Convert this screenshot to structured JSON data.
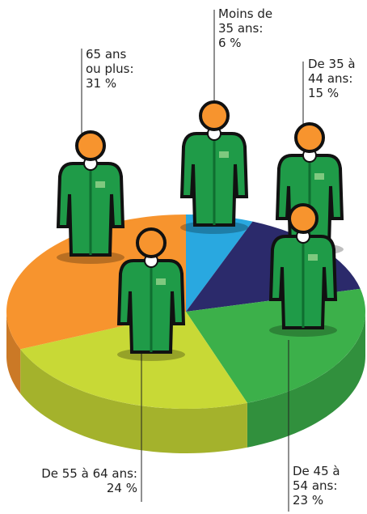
{
  "chart_data": {
    "type": "pie",
    "categories": [
      "Moins de 35 ans:",
      "De 35 à 44 ans:",
      "De 45 à 54 ans:",
      "De 55 à 64 ans:",
      "65 ans ou plus:"
    ],
    "values": [
      6,
      15,
      23,
      24,
      31
    ],
    "value_labels": [
      "6 %",
      "15 %",
      "23 %",
      "24 %",
      "31 %"
    ],
    "colors": [
      "#29a8e0",
      "#2b2a6b",
      "#3cb04a",
      "#c8d936",
      "#f7942e"
    ]
  }
}
